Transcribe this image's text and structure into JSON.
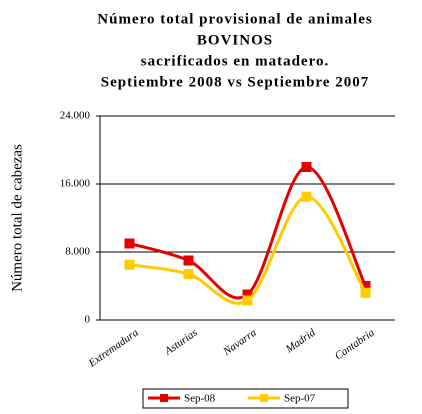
{
  "chart_data": {
    "type": "line",
    "title": [
      "Número total provisional de animales",
      "BOVINOS",
      "sacrificados en matadero.",
      "Septiembre 2008 vs Septiembre 2007"
    ],
    "y_label": "Número total de cabezas",
    "categories": [
      "Extremadura",
      "Asturias",
      "Navarra",
      "Madrid",
      "Cantabria"
    ],
    "series": [
      {
        "name": "Sep-08",
        "color": "#e60000",
        "values": [
          9000,
          7000,
          3000,
          18000,
          4000
        ]
      },
      {
        "name": "Sep-07",
        "color": "#ffcc00",
        "values": [
          6500,
          5400,
          2300,
          14500,
          3200
        ]
      }
    ],
    "ylim": [
      0,
      24000
    ],
    "yticks": [
      0,
      {
        "value": 8000,
        "label": "8.000"
      },
      {
        "value": 16000,
        "label": "16.000"
      },
      {
        "value": 24000,
        "label": "24.000"
      }
    ],
    "smooth": true,
    "grid": true
  }
}
